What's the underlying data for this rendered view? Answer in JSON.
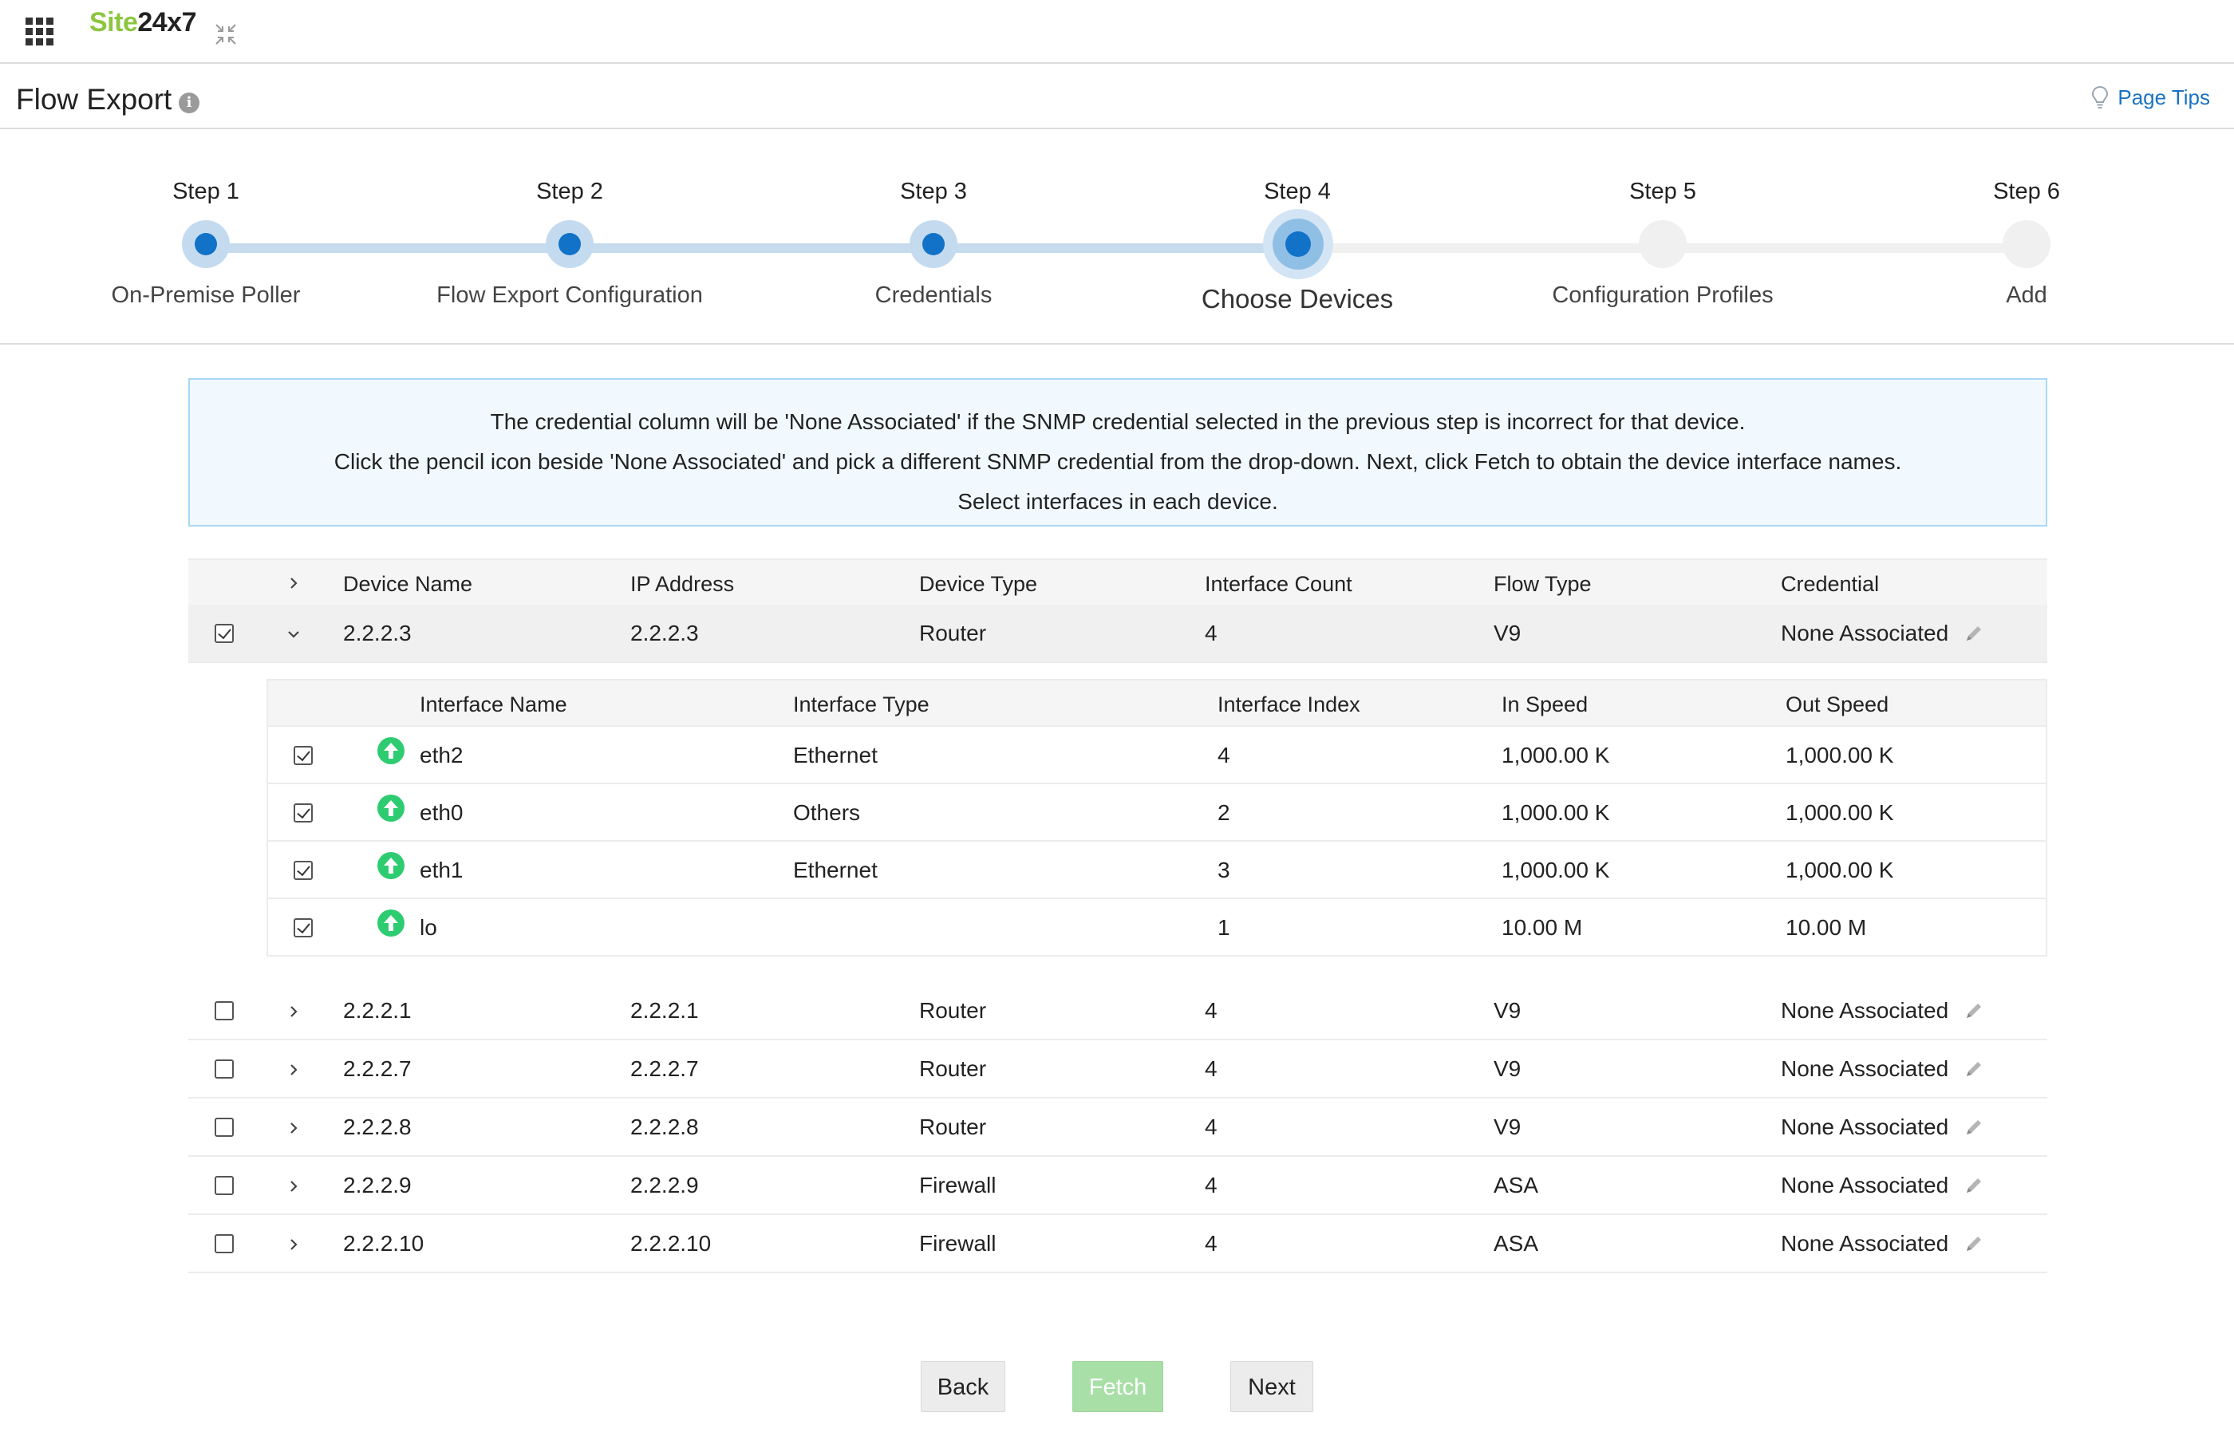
{
  "app": {
    "logo_part1": "Site",
    "logo_part2": "24x7"
  },
  "header": {
    "title": "Flow Export",
    "info_icon_glyph": "i",
    "page_tips": "Page Tips"
  },
  "stepper": {
    "steps": [
      {
        "num": "Step 1",
        "name": "On-Premise Poller",
        "state": "done"
      },
      {
        "num": "Step 2",
        "name": "Flow Export Configuration",
        "state": "done"
      },
      {
        "num": "Step 3",
        "name": "Credentials",
        "state": "done"
      },
      {
        "num": "Step 4",
        "name": "Choose Devices",
        "state": "current"
      },
      {
        "num": "Step 5",
        "name": "Configuration Profiles",
        "state": "todo"
      },
      {
        "num": "Step 6",
        "name": "Add",
        "state": "todo"
      }
    ]
  },
  "info_box": {
    "line1": "The credential column will be 'None Associated' if the SNMP credential selected in the previous step is incorrect for that device.",
    "line2": "Click the pencil icon beside 'None Associated' and pick a different SNMP credential from the drop-down. Next, click Fetch to obtain the device interface names.",
    "line3": "Select interfaces in each device."
  },
  "device_table": {
    "columns": {
      "name": "Device Name",
      "ip": "IP Address",
      "type": "Device Type",
      "count": "Interface Count",
      "flow": "Flow Type",
      "cred": "Credential"
    },
    "rows": [
      {
        "name": "2.2.2.3",
        "ip": "2.2.2.3",
        "type": "Router",
        "count": "4",
        "flow": "V9",
        "cred": "None Associated",
        "checked": true,
        "expanded": true
      },
      {
        "name": "2.2.2.1",
        "ip": "2.2.2.1",
        "type": "Router",
        "count": "4",
        "flow": "V9",
        "cred": "None Associated",
        "checked": false,
        "expanded": false
      },
      {
        "name": "2.2.2.7",
        "ip": "2.2.2.7",
        "type": "Router",
        "count": "4",
        "flow": "V9",
        "cred": "None Associated",
        "checked": false,
        "expanded": false
      },
      {
        "name": "2.2.2.8",
        "ip": "2.2.2.8",
        "type": "Router",
        "count": "4",
        "flow": "V9",
        "cred": "None Associated",
        "checked": false,
        "expanded": false
      },
      {
        "name": "2.2.2.9",
        "ip": "2.2.2.9",
        "type": "Firewall",
        "count": "4",
        "flow": "ASA",
        "cred": "None Associated",
        "checked": false,
        "expanded": false
      },
      {
        "name": "2.2.2.10",
        "ip": "2.2.2.10",
        "type": "Firewall",
        "count": "4",
        "flow": "ASA",
        "cred": "None Associated",
        "checked": false,
        "expanded": false
      }
    ]
  },
  "interface_table": {
    "columns": {
      "name": "Interface Name",
      "type": "Interface Type",
      "index": "Interface Index",
      "in": "In Speed",
      "out": "Out Speed"
    },
    "rows": [
      {
        "name": "eth2",
        "type": "Ethernet",
        "index": "4",
        "in": "1,000.00 K",
        "out": "1,000.00 K",
        "status": "up",
        "checked": true
      },
      {
        "name": "eth0",
        "type": "Others",
        "index": "2",
        "in": "1,000.00 K",
        "out": "1,000.00 K",
        "status": "up",
        "checked": true
      },
      {
        "name": "eth1",
        "type": "Ethernet",
        "index": "3",
        "in": "1,000.00 K",
        "out": "1,000.00 K",
        "status": "up",
        "checked": true
      },
      {
        "name": "lo",
        "type": "",
        "index": "1",
        "in": "10.00 M",
        "out": "10.00 M",
        "status": "up",
        "checked": true
      }
    ]
  },
  "buttons": {
    "back": "Back",
    "fetch": "Fetch",
    "next": "Next"
  },
  "colors": {
    "accent": "#1172c8",
    "brand_green": "#8cc63f",
    "status_up": "#2ecc71",
    "fetch_disabled": "#a8dfa6"
  }
}
